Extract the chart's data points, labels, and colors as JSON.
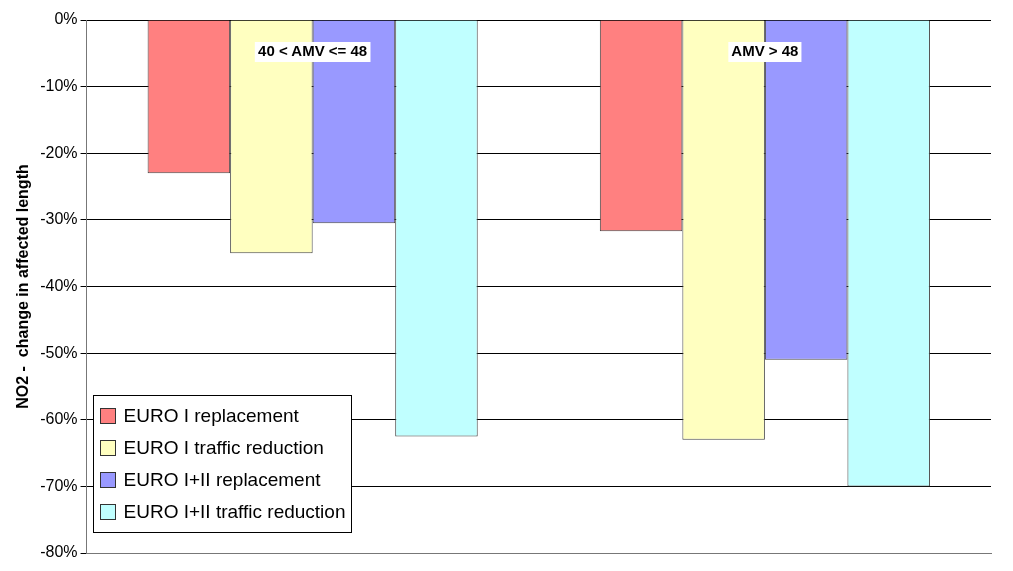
{
  "chart_data": {
    "type": "bar",
    "ylabel": "NO2 -  change in affected length",
    "categories": [
      "40 < AMV <= 48",
      "AMV > 48"
    ],
    "series": [
      {
        "name": "EURO I replacement",
        "color": "#ff8080",
        "values": [
          -23,
          -31.7
        ]
      },
      {
        "name": "EURO I traffic reduction",
        "color": "#ffffc0",
        "values": [
          -35,
          -63
        ]
      },
      {
        "name": "EURO I+II replacement",
        "color": "#9999ff",
        "values": [
          -30.5,
          -51
        ]
      },
      {
        "name": "EURO I+II traffic reduction",
        "color": "#c0ffff",
        "values": [
          -62.5,
          -70
        ]
      }
    ],
    "ylim": [
      -80,
      0
    ],
    "yticks": [
      {
        "value": -80,
        "label": "-80%"
      },
      {
        "value": -70,
        "label": "-70%"
      },
      {
        "value": -60,
        "label": "-60%"
      },
      {
        "value": -50,
        "label": "-50%"
      },
      {
        "value": -40,
        "label": "-40%"
      },
      {
        "value": -30,
        "label": "-30%"
      },
      {
        "value": -20,
        "label": "-20%"
      },
      {
        "value": -10,
        "label": "-10%"
      },
      {
        "value": 0,
        "label": "0%"
      }
    ],
    "grid": "y",
    "legend": "bottom left",
    "tick_labels": "y"
  }
}
